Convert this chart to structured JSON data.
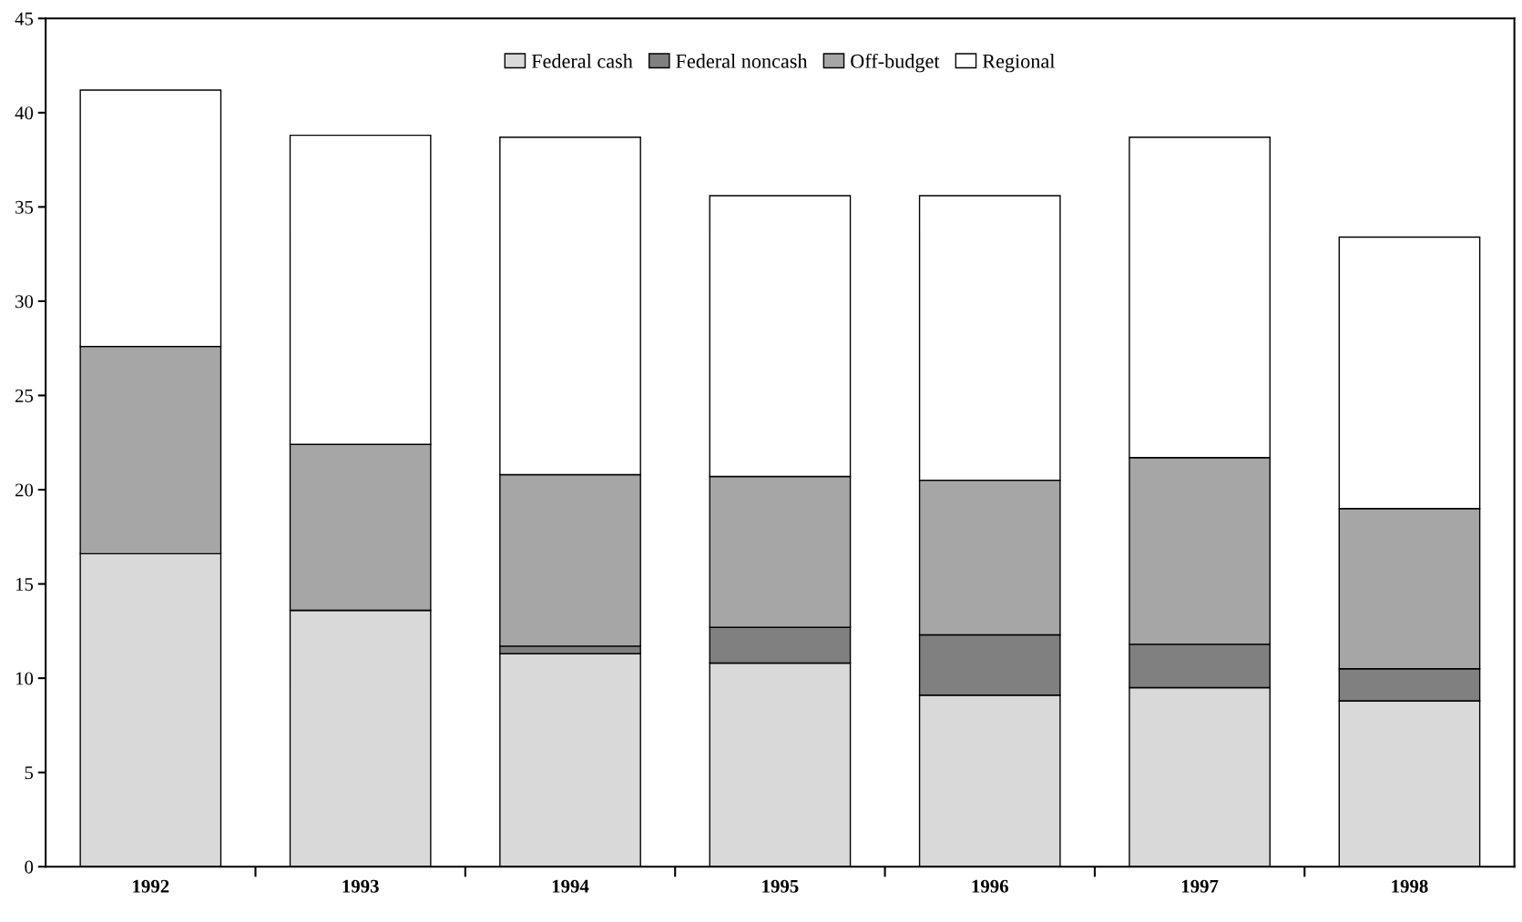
{
  "chart_data": {
    "type": "bar",
    "stacked": true,
    "categories": [
      "1992",
      "1993",
      "1994",
      "1995",
      "1996",
      "1997",
      "1998"
    ],
    "series": [
      {
        "name": "Federal cash",
        "color": "#d9d9d9",
        "values": [
          16.6,
          13.6,
          11.3,
          10.8,
          9.1,
          9.5,
          8.8
        ]
      },
      {
        "name": "Federal noncash",
        "color": "#808080",
        "values": [
          0,
          0,
          0.4,
          1.9,
          3.2,
          2.3,
          1.7
        ]
      },
      {
        "name": "Off-budget",
        "color": "#a6a6a6",
        "values": [
          11.0,
          8.8,
          9.1,
          8.0,
          8.2,
          9.9,
          8.5
        ]
      },
      {
        "name": "Regional",
        "color": "#ffffff",
        "values": [
          13.6,
          16.4,
          17.9,
          14.9,
          15.1,
          17.0,
          14.4
        ]
      }
    ],
    "ylim": [
      0,
      45
    ],
    "yticks": [
      0,
      5,
      10,
      15,
      20,
      25,
      30,
      35,
      40,
      45
    ],
    "grid": false,
    "legend": "top"
  }
}
